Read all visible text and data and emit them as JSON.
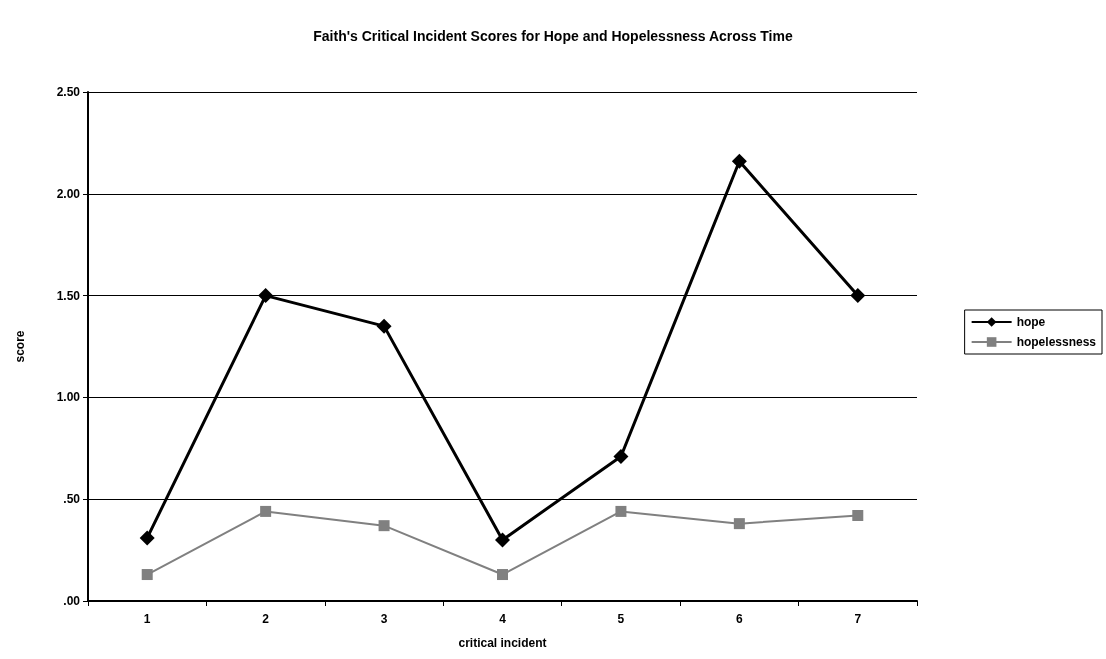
{
  "chart_data": {
    "type": "line",
    "title": "Faith's Critical Incident Scores for Hope and Hopelessness Across Time",
    "xlabel": "critical incident",
    "ylabel": "score",
    "categories": [
      "1",
      "2",
      "3",
      "4",
      "5",
      "6",
      "7"
    ],
    "series": [
      {
        "name": "hope",
        "color": "#000000",
        "marker": "diamond",
        "values": [
          0.31,
          1.5,
          1.35,
          0.3,
          0.71,
          2.16,
          1.5
        ]
      },
      {
        "name": "hopelessness",
        "color": "#808080",
        "marker": "square",
        "values": [
          0.13,
          0.44,
          0.37,
          0.13,
          0.44,
          0.38,
          0.42
        ]
      }
    ],
    "ylim": [
      0,
      2.5
    ],
    "yticks": [
      {
        "value": 0,
        "label": ".00"
      },
      {
        "value": 0.5,
        "label": ".50"
      },
      {
        "value": 1,
        "label": "1.00"
      },
      {
        "value": 1.5,
        "label": "1.50"
      },
      {
        "value": 2,
        "label": "2.00"
      },
      {
        "value": 2.5,
        "label": "2.50"
      }
    ],
    "grid": "y",
    "legend": "right",
    "line_style": "solid"
  }
}
